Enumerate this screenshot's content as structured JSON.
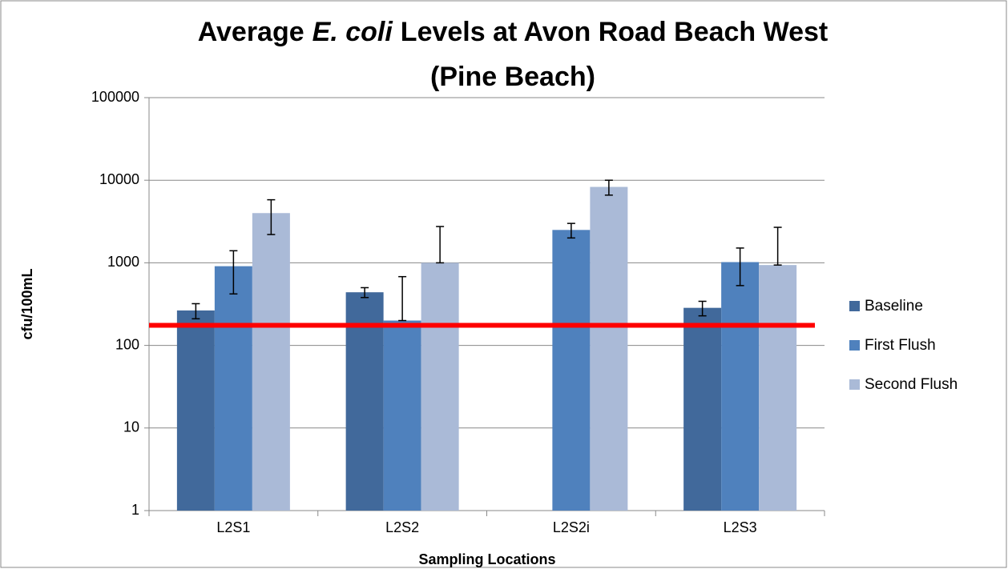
{
  "chart_data": {
    "type": "bar",
    "title": [
      "Average",
      "E. coli",
      "Levels at Avon Road Beach West",
      "(Pine Beach)"
    ],
    "x_label": "Sampling Locations",
    "y_label": "cfu/100mL",
    "categories": [
      "L2S1",
      "L2S2",
      "L2S2i",
      "L2S3"
    ],
    "series": [
      {
        "name": "Baseline",
        "color": "#41699b",
        "values": [
          265,
          440,
          null,
          285
        ],
        "errors": [
          55,
          60,
          null,
          57
        ]
      },
      {
        "name": "First Flush",
        "color": "#4f81bd",
        "values": [
          910,
          200,
          2500,
          1020
        ],
        "errors": [
          490,
          480,
          500,
          490
        ]
      },
      {
        "name": "Second Flush",
        "color": "#aabad7",
        "values": [
          4000,
          1000,
          8300,
          940
        ],
        "errors": [
          1800,
          1750,
          1700,
          1750
        ]
      }
    ],
    "reference_line": {
      "value": 175,
      "color": "#ff0000"
    },
    "ylim": [
      1,
      100000
    ],
    "yticks": [
      1,
      10,
      100,
      1000,
      10000,
      100000
    ],
    "y_scale": "log",
    "grid": true,
    "legend": "right"
  }
}
